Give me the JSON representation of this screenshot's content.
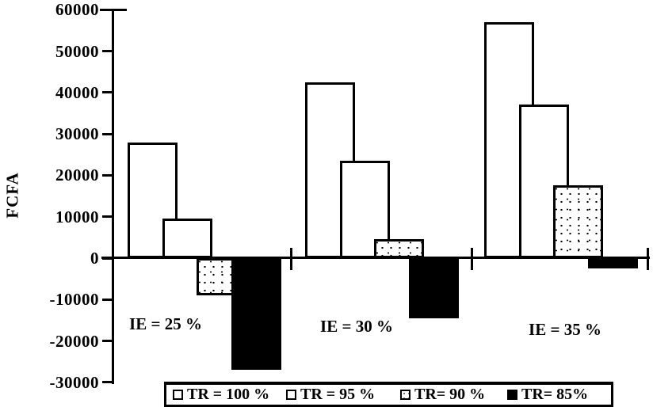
{
  "chart_data": {
    "type": "bar",
    "title": "",
    "xlabel": "",
    "ylabel": "FCFA",
    "categories": [
      "IE = 25 %",
      "IE = 30 %",
      "IE = 35 %"
    ],
    "series": [
      {
        "name": "TR = 100 %",
        "fill": "white",
        "values": [
          28000,
          42500,
          57000
        ]
      },
      {
        "name": "TR = 95 %",
        "fill": "white",
        "values": [
          9500,
          23500,
          37000
        ]
      },
      {
        "name": "TR= 90 %",
        "fill": "stipple",
        "values": [
          -9000,
          4500,
          17500
        ]
      },
      {
        "name": "TR= 85%",
        "fill": "black",
        "values": [
          -27000,
          -14500,
          -2500
        ]
      }
    ],
    "ylim": [
      -30000,
      60000
    ],
    "ytick_interval": 10000,
    "yticks": [
      60000,
      50000,
      40000,
      30000,
      20000,
      10000,
      0,
      -10000,
      -20000,
      -30000
    ],
    "ytick_labels": [
      "60000",
      "50000",
      "40000",
      "30000",
      "20000",
      "10000",
      "0",
      "-10000",
      "-20000",
      "-30000"
    ],
    "legend_position": "bottom",
    "grid": false,
    "colors": {
      "outline": "#000000",
      "background": "#ffffff",
      "solid_series": "#000000"
    }
  }
}
